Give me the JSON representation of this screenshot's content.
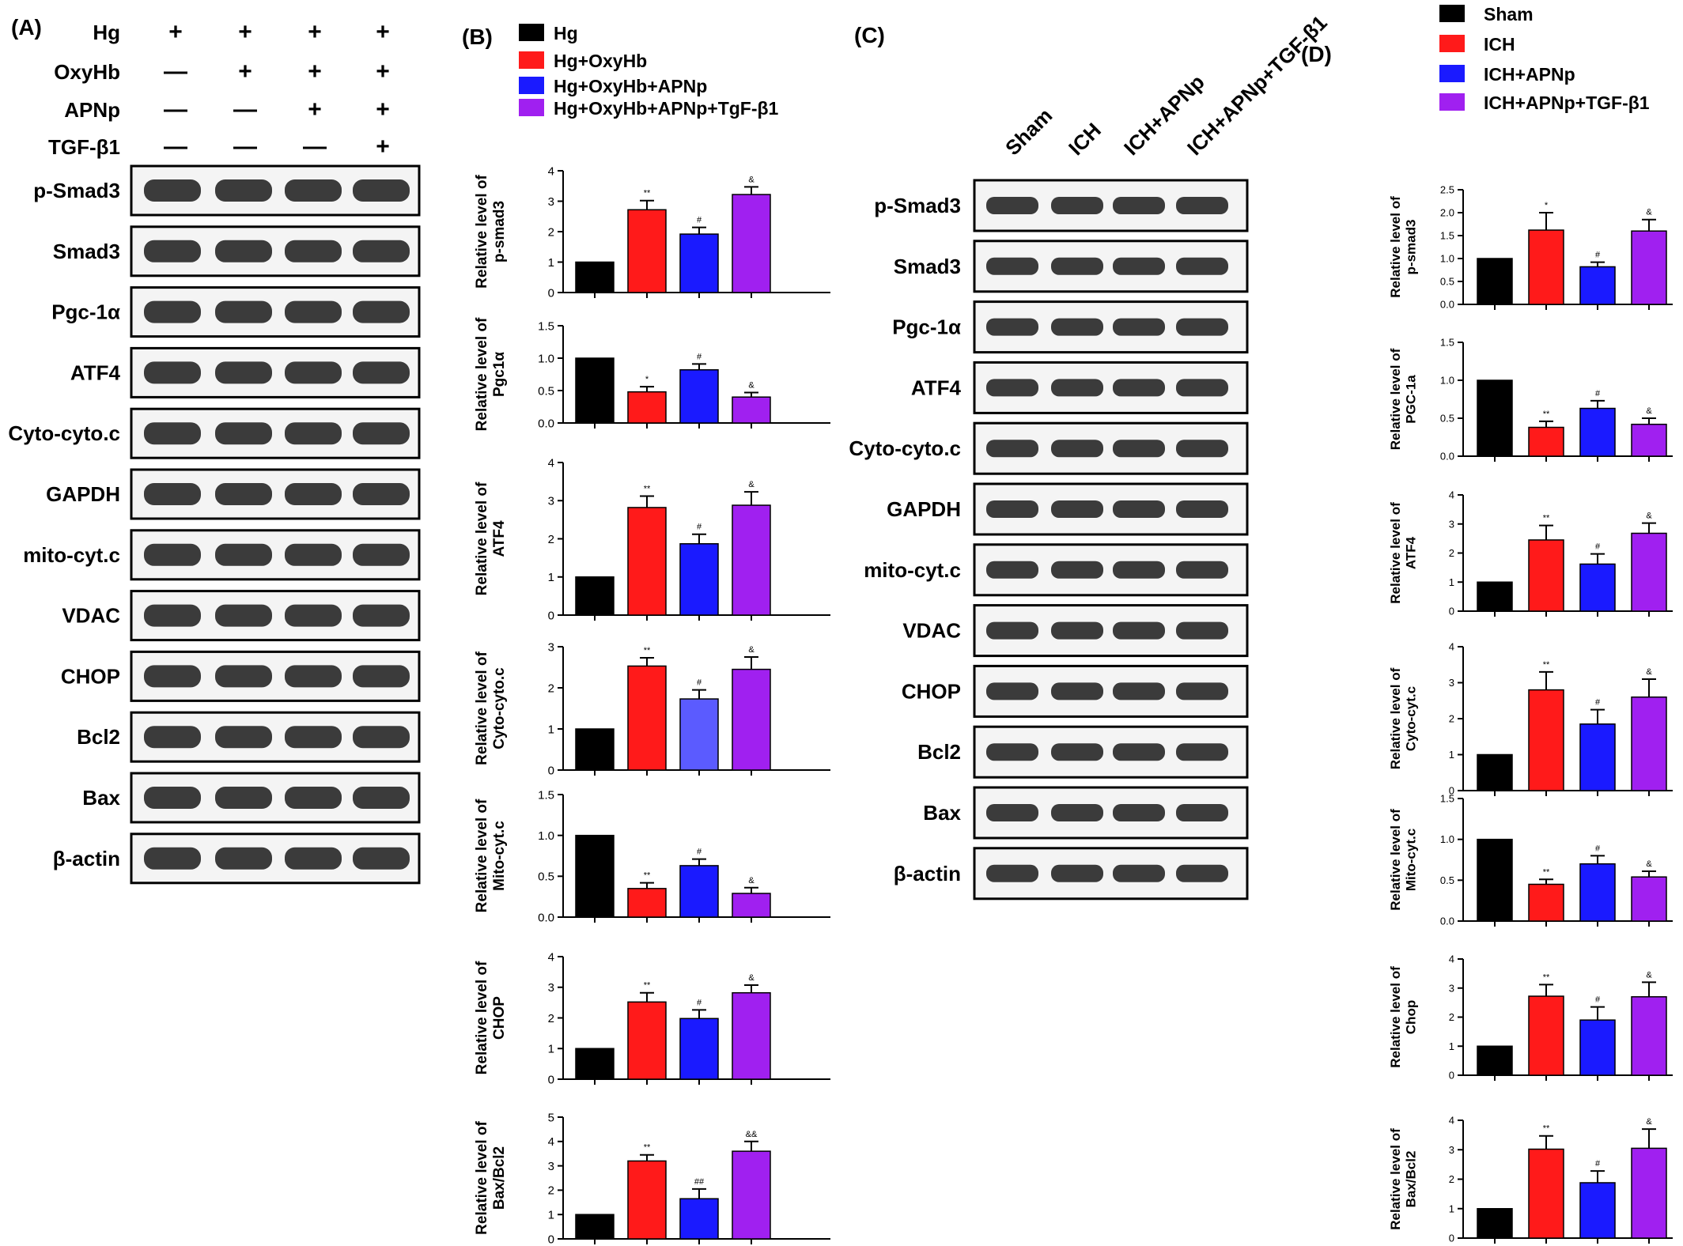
{
  "panels": {
    "A": {
      "label": "(A)",
      "treatment_rows": [
        {
          "name": "Hg",
          "marks": [
            "+",
            "+",
            "+",
            "+"
          ]
        },
        {
          "name": "OxyHb",
          "marks": [
            "—",
            "+",
            "+",
            "+"
          ]
        },
        {
          "name": "APNp",
          "marks": [
            "—",
            "—",
            "+",
            "+"
          ]
        },
        {
          "name": "TGF-β1",
          "marks": [
            "—",
            "—",
            "—",
            "+"
          ]
        }
      ],
      "blots": [
        "p-Smad3",
        "Smad3",
        "Pgc-1α",
        "ATF4",
        "Cyto-cyto.c",
        "GAPDH",
        "mito-cyt.c",
        "VDAC",
        "CHOP",
        "Bcl2",
        "Bax",
        "β-actin"
      ]
    },
    "B": {
      "label": "(B)",
      "legend": [
        "Hg",
        "Hg+OxyHb",
        "Hg+OxyHb+APNp",
        "Hg+OxyHb+APNp+TgF-β1"
      ]
    },
    "C": {
      "label": "(C)",
      "lane_labels": [
        "Sham",
        "ICH",
        "ICH+APNp",
        "ICH+APNp+TGF-β1"
      ],
      "blots": [
        "p-Smad3",
        "Smad3",
        "Pgc-1α",
        "ATF4",
        "Cyto-cyto.c",
        "GAPDH",
        "mito-cyt.c",
        "VDAC",
        "CHOP",
        "Bcl2",
        "Bax",
        "β-actin"
      ]
    },
    "D": {
      "label": "(D)",
      "legend": [
        "Sham",
        "ICH",
        "ICH+APNp",
        "ICH+APNp+TGF-β1"
      ]
    }
  },
  "colors": {
    "black": "#000000",
    "red": "#ff1a1a",
    "blue": "#1a1aff",
    "purple": "#a020f0",
    "blue_light": "#5b5bff"
  },
  "chart_data": [
    {
      "panel": "B",
      "type": "bar",
      "ylabel": [
        "Relative level of",
        "p-smad3"
      ],
      "categories": [
        "Hg",
        "Hg+OxyHb",
        "Hg+OxyHb+APNp",
        "Hg+OxyHb+APNp+TgF-β1"
      ],
      "values": [
        1.0,
        2.72,
        1.92,
        3.22
      ],
      "errors": [
        0,
        0.3,
        0.22,
        0.25
      ],
      "annotations": [
        "",
        "**",
        "#",
        "&"
      ],
      "ylim": [
        0,
        4
      ],
      "yticks": [
        "0",
        "1",
        "2",
        "3",
        "4"
      ]
    },
    {
      "panel": "B",
      "type": "bar",
      "ylabel": [
        "Relative level of",
        "Pgc1α"
      ],
      "categories": [
        "Hg",
        "Hg+OxyHb",
        "Hg+OxyHb+APNp",
        "Hg+OxyHb+APNp+TgF-β1"
      ],
      "values": [
        1.0,
        0.48,
        0.82,
        0.4
      ],
      "errors": [
        0,
        0.08,
        0.09,
        0.07
      ],
      "annotations": [
        "",
        "*",
        "#",
        "&"
      ],
      "ylim": [
        0,
        1.5
      ],
      "yticks": [
        "0.0",
        "0.5",
        "1.0",
        "1.5"
      ]
    },
    {
      "panel": "B",
      "type": "bar",
      "ylabel": [
        "Relative level of",
        "ATF4"
      ],
      "categories": [
        "Hg",
        "Hg+OxyHb",
        "Hg+OxyHb+APNp",
        "Hg+OxyHb+APNp+TgF-β1"
      ],
      "values": [
        1.0,
        2.82,
        1.87,
        2.88
      ],
      "errors": [
        0,
        0.3,
        0.25,
        0.35
      ],
      "annotations": [
        "",
        "**",
        "#",
        "&"
      ],
      "ylim": [
        0,
        4
      ],
      "yticks": [
        "0",
        "1",
        "2",
        "3",
        "4"
      ]
    },
    {
      "panel": "B",
      "type": "bar",
      "ylabel": [
        "Relative level of",
        "Cyto-cyto.c"
      ],
      "categories": [
        "Hg",
        "Hg+OxyHb",
        "Hg+OxyHb+APNp",
        "Hg+OxyHb+APNp+TgF-β1"
      ],
      "values": [
        1.0,
        2.53,
        1.73,
        2.45
      ],
      "errors": [
        0,
        0.2,
        0.22,
        0.3
      ],
      "annotations": [
        "",
        "**",
        "#",
        "&"
      ],
      "ylim": [
        0,
        3
      ],
      "yticks": [
        "0",
        "1",
        "2",
        "3"
      ],
      "colors": [
        "#000000",
        "#ff1a1a",
        "#5b5bff",
        "#a020f0"
      ]
    },
    {
      "panel": "B",
      "type": "bar",
      "ylabel": [
        "Relative level of",
        "Mito-cyt.c"
      ],
      "categories": [
        "Hg",
        "Hg+OxyHb",
        "Hg+OxyHb+APNp",
        "Hg+OxyHb+APNp+TgF-β1"
      ],
      "values": [
        1.0,
        0.35,
        0.63,
        0.29
      ],
      "errors": [
        0,
        0.07,
        0.08,
        0.07
      ],
      "annotations": [
        "",
        "**",
        "#",
        "&"
      ],
      "ylim": [
        0,
        1.5
      ],
      "yticks": [
        "0.0",
        "0.5",
        "1.0",
        "1.5"
      ]
    },
    {
      "panel": "B",
      "type": "bar",
      "ylabel": [
        "Relative  level of",
        "CHOP"
      ],
      "categories": [
        "Hg",
        "Hg+OxyHb",
        "Hg+OxyHb+APNp",
        "Hg+OxyHb+APNp+TgF-β1"
      ],
      "values": [
        1.0,
        2.52,
        1.98,
        2.82
      ],
      "errors": [
        0,
        0.3,
        0.28,
        0.25
      ],
      "annotations": [
        "",
        "**",
        "#",
        "&"
      ],
      "ylim": [
        0,
        4
      ],
      "yticks": [
        "0",
        "1",
        "2",
        "3",
        "4"
      ]
    },
    {
      "panel": "B",
      "type": "bar",
      "ylabel": [
        "Relative level of",
        "Bax/Bcl2"
      ],
      "categories": [
        "Hg",
        "Hg+OxyHb",
        "Hg+OxyHb+APNp",
        "Hg+OxyHb+APNp+TgF-β1"
      ],
      "values": [
        1.0,
        3.2,
        1.65,
        3.6
      ],
      "errors": [
        0,
        0.25,
        0.4,
        0.4
      ],
      "annotations": [
        "",
        "**",
        "##",
        "&&"
      ],
      "ylim": [
        0,
        5
      ],
      "yticks": [
        "0",
        "1",
        "2",
        "3",
        "4",
        "5"
      ]
    },
    {
      "panel": "D",
      "type": "bar",
      "ylabel": [
        "Relative level of",
        "p-smad3"
      ],
      "categories": [
        "Sham",
        "ICH",
        "ICH+APNp",
        "ICH+APNp+TGF-β1"
      ],
      "values": [
        1.0,
        1.62,
        0.82,
        1.6
      ],
      "errors": [
        0,
        0.38,
        0.1,
        0.25
      ],
      "annotations": [
        "",
        "*",
        "#",
        "&"
      ],
      "ylim": [
        0,
        2.5
      ],
      "yticks": [
        "0.0",
        "0.5",
        "1.0",
        "1.5",
        "2.0",
        "2.5"
      ]
    },
    {
      "panel": "D",
      "type": "bar",
      "ylabel": [
        "Relative level of",
        "PGC-1a"
      ],
      "categories": [
        "Sham",
        "ICH",
        "ICH+APNp",
        "ICH+APNp+TGF-β1"
      ],
      "values": [
        1.0,
        0.38,
        0.63,
        0.42
      ],
      "errors": [
        0,
        0.08,
        0.1,
        0.08
      ],
      "annotations": [
        "",
        "**",
        "#",
        "&"
      ],
      "ylim": [
        0,
        1.5
      ],
      "yticks": [
        "0.0",
        "0.5",
        "1.0",
        "1.5"
      ]
    },
    {
      "panel": "D",
      "type": "bar",
      "ylabel": [
        "Relative level of",
        "ATF4"
      ],
      "categories": [
        "Sham",
        "ICH",
        "ICH+APNp",
        "ICH+APNp+TGF-β1"
      ],
      "values": [
        1.0,
        2.45,
        1.62,
        2.68
      ],
      "errors": [
        0,
        0.5,
        0.35,
        0.35
      ],
      "annotations": [
        "",
        "**",
        "#",
        "&"
      ],
      "ylim": [
        0,
        4
      ],
      "yticks": [
        "0",
        "1",
        "2",
        "3",
        "4"
      ]
    },
    {
      "panel": "D",
      "type": "bar",
      "ylabel": [
        "Relative level of",
        "Cyto-cyt.c"
      ],
      "categories": [
        "Sham",
        "ICH",
        "ICH+APNp",
        "ICH+APNp+TGF-β1"
      ],
      "values": [
        1.0,
        2.8,
        1.85,
        2.6
      ],
      "errors": [
        0,
        0.5,
        0.4,
        0.5
      ],
      "annotations": [
        "",
        "**",
        "#",
        "&"
      ],
      "ylim": [
        0,
        4
      ],
      "yticks": [
        "0",
        "1",
        "2",
        "3",
        "4"
      ]
    },
    {
      "panel": "D",
      "type": "bar",
      "ylabel": [
        "Relative level of",
        "Mito-cyt.c"
      ],
      "categories": [
        "Sham",
        "ICH",
        "ICH+APNp",
        "ICH+APNp+TGF-β1"
      ],
      "values": [
        1.0,
        0.45,
        0.7,
        0.54
      ],
      "errors": [
        0,
        0.06,
        0.1,
        0.07
      ],
      "annotations": [
        "",
        "**",
        "#",
        "&"
      ],
      "ylim": [
        0,
        1.5
      ],
      "yticks": [
        "0.0",
        "0.5",
        "1.0",
        "1.5"
      ]
    },
    {
      "panel": "D",
      "type": "bar",
      "ylabel": [
        "Relative level of",
        "Chop"
      ],
      "categories": [
        "Sham",
        "ICH",
        "ICH+APNp",
        "ICH+APNp+TGF-β1"
      ],
      "values": [
        1.0,
        2.72,
        1.9,
        2.7
      ],
      "errors": [
        0,
        0.4,
        0.45,
        0.5
      ],
      "annotations": [
        "",
        "**",
        "#",
        "&"
      ],
      "ylim": [
        0,
        4
      ],
      "yticks": [
        "0",
        "1",
        "2",
        "3",
        "4"
      ]
    },
    {
      "panel": "D",
      "type": "bar",
      "ylabel": [
        "Relative level of",
        "Bax/Bcl2"
      ],
      "categories": [
        "Sham",
        "ICH",
        "ICH+APNp",
        "ICH+APNp+TGF-β1"
      ],
      "values": [
        1.0,
        3.02,
        1.88,
        3.05
      ],
      "errors": [
        0,
        0.45,
        0.4,
        0.65
      ],
      "annotations": [
        "",
        "**",
        "#",
        "&"
      ],
      "ylim": [
        0,
        4
      ],
      "yticks": [
        "0",
        "1",
        "2",
        "3",
        "4"
      ]
    }
  ]
}
